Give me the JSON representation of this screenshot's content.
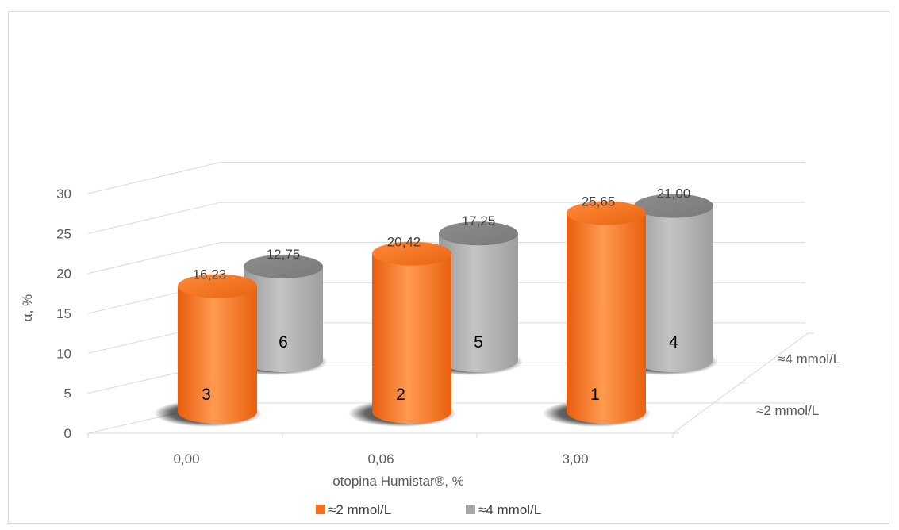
{
  "chart_data": {
    "type": "bar",
    "style": "3d-cylinder",
    "categories": [
      "0,00",
      "0,06",
      "3,00"
    ],
    "depth_categories": [
      "≈2 mmol/L",
      "≈4 mmol/L"
    ],
    "series": [
      {
        "name": "≈2 mmol/L",
        "color": "#f36f21",
        "values": [
          16.23,
          20.42,
          25.65
        ],
        "value_labels": [
          "16,23",
          "20,42",
          "25,65"
        ],
        "rank_labels": [
          "3",
          "2",
          "1"
        ]
      },
      {
        "name": "≈4 mmol/L",
        "color": "#a6a6a6",
        "values": [
          12.75,
          17.25,
          21.0
        ],
        "value_labels": [
          "12,75",
          "17,25",
          "21,00"
        ],
        "rank_labels": [
          "6",
          "5",
          "4"
        ]
      }
    ],
    "ylim": [
      0,
      30
    ],
    "yticks": [
      "0",
      "5",
      "10",
      "15",
      "20",
      "25",
      "30"
    ],
    "xlabel": "otopina Humistar®, %",
    "ylabel": "α, %",
    "grid": true,
    "legend_position": "bottom"
  },
  "colors": {
    "orange": "#f36f21",
    "gray": "#a6a6a6",
    "grid": "#d9d9d9"
  }
}
